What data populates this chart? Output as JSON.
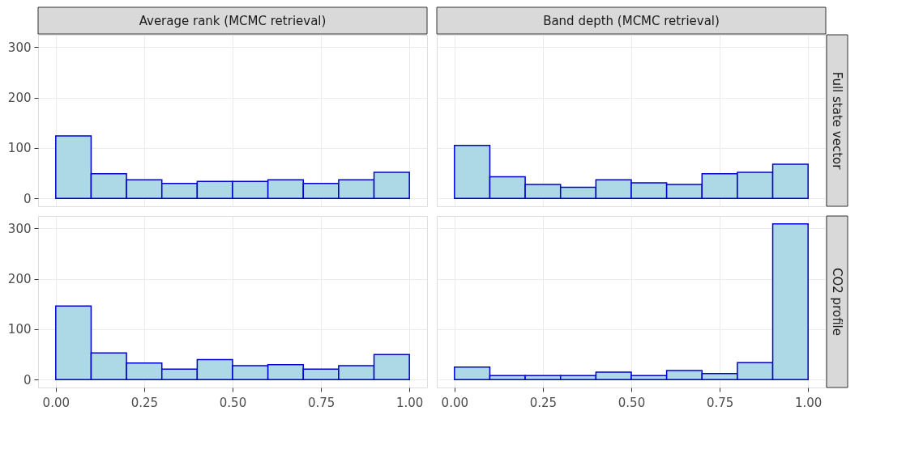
{
  "chart_data": [
    {
      "type": "histogram",
      "title": "Average rank (MCMC retrieval)",
      "bins": [
        0,
        0.1,
        0.2,
        0.3,
        0.4,
        0.5,
        0.6,
        0.7,
        0.8,
        0.9,
        1.0
      ],
      "values": [
        124,
        49,
        37,
        30,
        34,
        34,
        37,
        30,
        37,
        52
      ],
      "color": "#add8e6",
      "xlim": [
        -0.05,
        1.05
      ],
      "xticks": [
        0,
        0.25,
        0.5,
        0.75,
        1
      ],
      "ylim": [
        -15.5,
        324.5
      ],
      "yticks": [
        0,
        100,
        200,
        300
      ],
      "grid": true,
      "tick_labels": "y"
    },
    {
      "type": "histogram",
      "title": "Band depth (MCMC retrieval)",
      "annotations": [
        "Full state vector"
      ],
      "bins": [
        0,
        0.1,
        0.2,
        0.3,
        0.4,
        0.5,
        0.6,
        0.7,
        0.8,
        0.9,
        1.0
      ],
      "values": [
        105,
        43,
        28,
        22,
        37,
        31,
        28,
        49,
        52,
        68
      ],
      "color": "#add8e6",
      "xlim": [
        -0.05,
        1.05
      ],
      "xticks": [
        0,
        0.25,
        0.5,
        0.75,
        1
      ],
      "ylim": [
        -15.5,
        324.5
      ],
      "yticks": [
        0,
        100,
        200,
        300
      ],
      "grid": true,
      "tick_labels": false
    },
    {
      "type": "histogram",
      "bins": [
        0,
        0.1,
        0.2,
        0.3,
        0.4,
        0.5,
        0.6,
        0.7,
        0.8,
        0.9,
        1.0
      ],
      "values": [
        146,
        53,
        33,
        21,
        40,
        28,
        30,
        21,
        28,
        50
      ],
      "color": "#add8e6",
      "xlim": [
        -0.05,
        1.05
      ],
      "xticks": [
        {
          "value": 0,
          "label": "0.00"
        },
        {
          "value": 0.25,
          "label": "0.25"
        },
        {
          "value": 0.5,
          "label": "0.50"
        },
        {
          "value": 0.75,
          "label": "0.75"
        },
        {
          "value": 1,
          "label": "1.00"
        }
      ],
      "ylim": [
        -15.5,
        324.5
      ],
      "yticks": [
        0,
        100,
        200,
        300
      ],
      "grid": true
    },
    {
      "type": "histogram",
      "annotations": [
        "CO2 profile"
      ],
      "bins": [
        0,
        0.1,
        0.2,
        0.3,
        0.4,
        0.5,
        0.6,
        0.7,
        0.8,
        0.9,
        1.0
      ],
      "values": [
        25,
        8,
        8,
        8,
        15,
        8,
        18,
        12,
        34,
        309
      ],
      "color": "#add8e6",
      "xlim": [
        -0.05,
        1.05
      ],
      "xticks": [
        {
          "value": 0,
          "label": "0.00"
        },
        {
          "value": 0.25,
          "label": "0.25"
        },
        {
          "value": 0.5,
          "label": "0.50"
        },
        {
          "value": 0.75,
          "label": "0.75"
        },
        {
          "value": 1,
          "label": "1.00"
        }
      ],
      "ylim": [
        -15.5,
        324.5
      ],
      "yticks": [
        0,
        100,
        200,
        300
      ],
      "grid": true,
      "tick_labels": "x"
    }
  ]
}
